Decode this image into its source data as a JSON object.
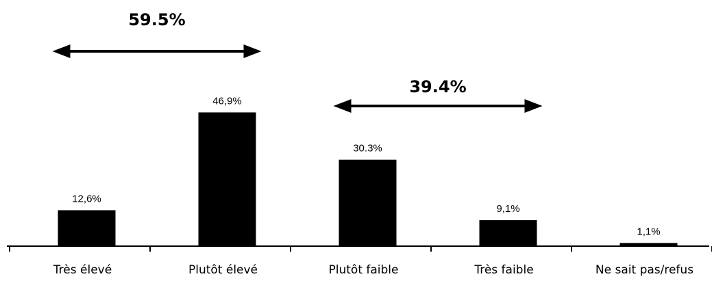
{
  "chart_data": {
    "type": "bar",
    "categories": [
      "Très élevé",
      "Plutôt élevé",
      "Plutôt faible",
      "Très faible",
      "Ne sait pas/refus"
    ],
    "values": [
      12.6,
      46.9,
      30.3,
      9.1,
      1.1
    ],
    "value_labels": [
      "12,6%",
      "46,9%",
      "30.3%",
      "9,1%",
      "1,1%"
    ],
    "title": "",
    "xlabel": "",
    "ylabel": "",
    "ylim": [
      0,
      50
    ],
    "grid": false,
    "legend": "none",
    "colors": {
      "bars": "#000000"
    },
    "annotations": [
      {
        "label": "59.5%",
        "spans": [
          "Très élevé",
          "Plutôt élevé"
        ]
      },
      {
        "label": "39.4%",
        "spans": [
          "Plutôt faible",
          "Très faible"
        ]
      }
    ]
  }
}
